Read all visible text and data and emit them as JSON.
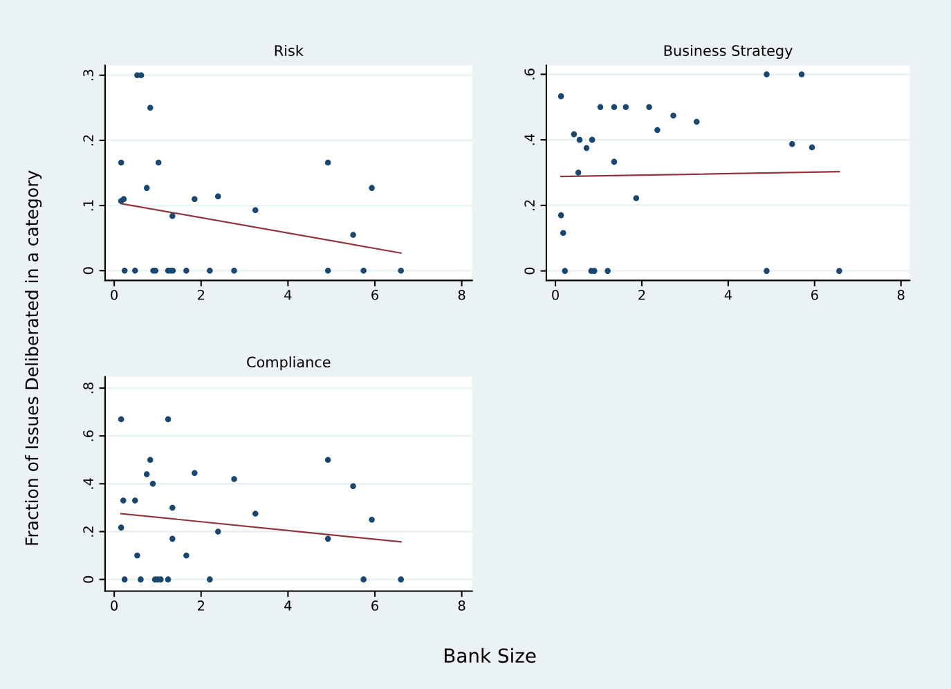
{
  "chart_data": [
    {
      "type": "scatter",
      "title": "Risk",
      "xlabel": "Bank Size",
      "ylabel": "Fraction of Issues Deliberated in a category",
      "xlim": [
        -0.21,
        8.24
      ],
      "xticks": [
        0,
        2,
        4,
        6,
        8
      ],
      "ylim": [
        -0.015,
        0.315
      ],
      "yticks": [
        {
          "value": 0,
          "label": "0"
        },
        {
          "value": 0.1,
          "label": ".1"
        },
        {
          "value": 0.2,
          "label": ".2"
        },
        {
          "value": 0.3,
          "label": ".3"
        }
      ],
      "grid": "y",
      "series": [
        {
          "marker": "circle",
          "color": "#1a476f",
          "x": [
            0.16,
            0.16,
            0.22,
            0.53,
            0.62,
            0.83,
            1.02,
            0.75,
            1.85,
            2.39,
            3.25,
            1.34,
            4.92,
            5.93,
            5.5,
            0.24,
            0.48,
            0.9,
            0.95,
            1.24,
            1.3,
            1.35,
            1.66,
            2.2,
            2.76,
            4.92,
            5.74,
            6.6
          ],
          "values": [
            0.166,
            0.107,
            0.11,
            0.3,
            0.3,
            0.25,
            0.166,
            0.127,
            0.11,
            0.114,
            0.093,
            0.084,
            0.166,
            0.127,
            0.055,
            0,
            0,
            0,
            0,
            0,
            0,
            0,
            0,
            0,
            0,
            0,
            0,
            0
          ]
        },
        {
          "type": "line",
          "color": "#90353b",
          "x": [
            0.16,
            6.6
          ],
          "values": [
            0.103,
            0.027
          ]
        }
      ]
    },
    {
      "type": "scatter",
      "title": "Business Strategy",
      "xlim": [
        -0.21,
        8.2
      ],
      "xticks": [
        0,
        2,
        4,
        6,
        8
      ],
      "ylim": [
        -0.029,
        0.627
      ],
      "yticks": [
        {
          "value": 0,
          "label": "0"
        },
        {
          "value": 0.2,
          "label": ".2"
        },
        {
          "value": 0.4,
          "label": ".4"
        },
        {
          "value": 0.6,
          "label": ".6"
        }
      ],
      "grid": "y",
      "series": [
        {
          "marker": "circle",
          "color": "#1a476f",
          "x": [
            0.13,
            0.13,
            0.18,
            0.22,
            0.43,
            0.56,
            0.53,
            0.72,
            0.85,
            0.83,
            0.9,
            1.04,
            1.21,
            1.36,
            1.36,
            1.63,
            1.87,
            2.17,
            2.36,
            2.73,
            3.27,
            4.89,
            4.89,
            5.48,
            5.7,
            5.94,
            6.57
          ],
          "values": [
            0.533,
            0.17,
            0.116,
            0,
            0.417,
            0.4,
            0.3,
            0.375,
            0.4,
            0,
            0,
            0.5,
            0,
            0.5,
            0.333,
            0.5,
            0.222,
            0.5,
            0.43,
            0.474,
            0.455,
            0.6,
            0,
            0.387,
            0.6,
            0.377,
            0
          ]
        },
        {
          "type": "line",
          "color": "#90353b",
          "x": [
            0.13,
            6.57
          ],
          "values": [
            0.288,
            0.303
          ]
        }
      ]
    },
    {
      "type": "scatter",
      "title": "Compliance",
      "xlim": [
        -0.21,
        8.24
      ],
      "xticks": [
        0,
        2,
        4,
        6,
        8
      ],
      "ylim": [
        -0.049,
        0.847
      ],
      "yticks": [
        {
          "value": 0,
          "label": "0"
        },
        {
          "value": 0.2,
          "label": ".2"
        },
        {
          "value": 0.4,
          "label": ".4"
        },
        {
          "value": 0.6,
          "label": ".6"
        },
        {
          "value": 0.8,
          "label": ".8"
        }
      ],
      "grid": "y",
      "series": [
        {
          "marker": "circle",
          "color": "#1a476f",
          "x": [
            0.16,
            1.24,
            0.83,
            0.75,
            0.89,
            0.21,
            0.48,
            1.34,
            0.16,
            1.85,
            2.76,
            3.25,
            2.39,
            1.34,
            0.53,
            1.66,
            4.92,
            4.92,
            5.5,
            5.93,
            0.24,
            0.61,
            0.94,
            1.0,
            1.07,
            1.24,
            2.2,
            5.74,
            6.6
          ],
          "values": [
            0.67,
            0.67,
            0.5,
            0.44,
            0.4,
            0.33,
            0.33,
            0.3,
            0.217,
            0.445,
            0.42,
            0.275,
            0.2,
            0.17,
            0.1,
            0.1,
            0.5,
            0.17,
            0.39,
            0.25,
            0,
            0,
            0,
            0,
            0,
            0,
            0,
            0,
            0
          ]
        },
        {
          "type": "line",
          "color": "#90353b",
          "x": [
            0.16,
            6.6
          ],
          "values": [
            0.275,
            0.157
          ]
        }
      ]
    }
  ]
}
